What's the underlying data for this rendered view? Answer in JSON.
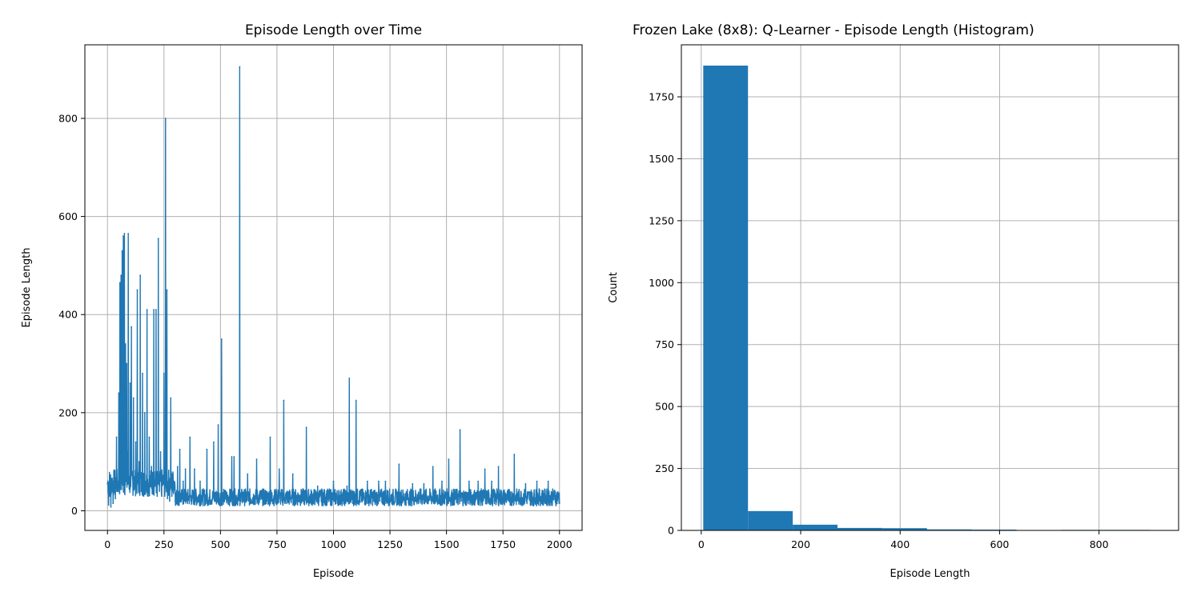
{
  "colors": {
    "series": "#1f77b4",
    "grid": "#b0b0b0",
    "axes": "#000000",
    "background": "#ffffff"
  },
  "chart_data": [
    {
      "type": "line",
      "title": "Episode Length over Time",
      "xlabel": "Episode",
      "ylabel": "Episode Length",
      "xlim": [
        -100,
        2100
      ],
      "ylim": [
        -40,
        950
      ],
      "xticks": [
        0,
        250,
        500,
        750,
        1000,
        1250,
        1500,
        1750,
        2000
      ],
      "yticks": [
        0,
        200,
        400,
        600,
        800
      ],
      "grid": true,
      "series": [
        {
          "points": [
            [
              0,
              55
            ],
            [
              5,
              12
            ],
            [
              10,
              30
            ],
            [
              15,
              8
            ],
            [
              20,
              40
            ],
            [
              25,
              15
            ],
            [
              30,
              80
            ],
            [
              35,
              25
            ],
            [
              40,
              150
            ],
            [
              45,
              40
            ],
            [
              50,
              240
            ],
            [
              52,
              60
            ],
            [
              55,
              465
            ],
            [
              58,
              90
            ],
            [
              60,
              480
            ],
            [
              62,
              120
            ],
            [
              65,
              530
            ],
            [
              67,
              80
            ],
            [
              70,
              560
            ],
            [
              73,
              150
            ],
            [
              75,
              565
            ],
            [
              78,
              100
            ],
            [
              80,
              340
            ],
            [
              83,
              60
            ],
            [
              85,
              300
            ],
            [
              88,
              120
            ],
            [
              92,
              565
            ],
            [
              95,
              60
            ],
            [
              100,
              260
            ],
            [
              103,
              50
            ],
            [
              106,
              375
            ],
            [
              110,
              80
            ],
            [
              115,
              230
            ],
            [
              120,
              60
            ],
            [
              125,
              140
            ],
            [
              128,
              40
            ],
            [
              132,
              450
            ],
            [
              136,
              70
            ],
            [
              140,
              100
            ],
            [
              145,
              480
            ],
            [
              150,
              40
            ],
            [
              155,
              280
            ],
            [
              160,
              30
            ],
            [
              165,
              200
            ],
            [
              170,
              60
            ],
            [
              175,
              410
            ],
            [
              180,
              30
            ],
            [
              185,
              150
            ],
            [
              190,
              60
            ],
            [
              195,
              90
            ],
            [
              200,
              40
            ],
            [
              205,
              410
            ],
            [
              210,
              50
            ],
            [
              215,
              410
            ],
            [
              220,
              30
            ],
            [
              225,
              555
            ],
            [
              230,
              40
            ],
            [
              235,
              120
            ],
            [
              240,
              30
            ],
            [
              245,
              60
            ],
            [
              250,
              280
            ],
            [
              253,
              30
            ],
            [
              257,
              800
            ],
            [
              260,
              50
            ],
            [
              263,
              450
            ],
            [
              266,
              25
            ],
            [
              270,
              60
            ],
            [
              275,
              20
            ],
            [
              280,
              230
            ],
            [
              285,
              30
            ],
            [
              295,
              60
            ],
            [
              300,
              20
            ],
            [
              310,
              90
            ],
            [
              315,
              20
            ],
            [
              320,
              125
            ],
            [
              325,
              25
            ],
            [
              335,
              60
            ],
            [
              340,
              20
            ],
            [
              345,
              85
            ],
            [
              350,
              20
            ],
            [
              365,
              150
            ],
            [
              370,
              20
            ],
            [
              385,
              85
            ],
            [
              390,
              20
            ],
            [
              410,
              60
            ],
            [
              420,
              20
            ],
            [
              440,
              125
            ],
            [
              445,
              20
            ],
            [
              470,
              140
            ],
            [
              475,
              20
            ],
            [
              490,
              175
            ],
            [
              495,
              20
            ],
            [
              505,
              350
            ],
            [
              510,
              20
            ],
            [
              520,
              40
            ],
            [
              530,
              20
            ],
            [
              550,
              110
            ],
            [
              555,
              20
            ],
            [
              560,
              110
            ],
            [
              565,
              20
            ],
            [
              585,
              905
            ],
            [
              590,
              20
            ],
            [
              620,
              75
            ],
            [
              625,
              20
            ],
            [
              660,
              105
            ],
            [
              665,
              20
            ],
            [
              700,
              40
            ],
            [
              705,
              20
            ],
            [
              720,
              150
            ],
            [
              725,
              20
            ],
            [
              760,
              85
            ],
            [
              765,
              20
            ],
            [
              780,
              225
            ],
            [
              785,
              20
            ],
            [
              820,
              75
            ],
            [
              825,
              20
            ],
            [
              860,
              40
            ],
            [
              865,
              20
            ],
            [
              880,
              170
            ],
            [
              885,
              20
            ],
            [
              930,
              50
            ],
            [
              935,
              20
            ],
            [
              1000,
              60
            ],
            [
              1005,
              20
            ],
            [
              1060,
              50
            ],
            [
              1065,
              20
            ],
            [
              1070,
              270
            ],
            [
              1075,
              20
            ],
            [
              1100,
              225
            ],
            [
              1105,
              20
            ],
            [
              1150,
              60
            ],
            [
              1155,
              20
            ],
            [
              1200,
              60
            ],
            [
              1205,
              20
            ],
            [
              1230,
              60
            ],
            [
              1235,
              20
            ],
            [
              1290,
              95
            ],
            [
              1295,
              20
            ],
            [
              1350,
              55
            ],
            [
              1355,
              20
            ],
            [
              1400,
              55
            ],
            [
              1405,
              20
            ],
            [
              1440,
              90
            ],
            [
              1445,
              20
            ],
            [
              1480,
              60
            ],
            [
              1485,
              20
            ],
            [
              1510,
              105
            ],
            [
              1515,
              20
            ],
            [
              1560,
              165
            ],
            [
              1565,
              20
            ],
            [
              1600,
              60
            ],
            [
              1605,
              20
            ],
            [
              1640,
              60
            ],
            [
              1645,
              20
            ],
            [
              1670,
              85
            ],
            [
              1675,
              20
            ],
            [
              1700,
              60
            ],
            [
              1705,
              20
            ],
            [
              1730,
              90
            ],
            [
              1735,
              20
            ],
            [
              1770,
              40
            ],
            [
              1775,
              20
            ],
            [
              1800,
              115
            ],
            [
              1805,
              20
            ],
            [
              1850,
              55
            ],
            [
              1855,
              20
            ],
            [
              1900,
              60
            ],
            [
              1905,
              20
            ],
            [
              1950,
              60
            ],
            [
              1955,
              20
            ],
            [
              1980,
              40
            ],
            [
              1985,
              15
            ],
            [
              1995,
              30
            ],
            [
              2000,
              15
            ]
          ],
          "noise_band": [
            10,
            45
          ]
        }
      ]
    },
    {
      "type": "histogram",
      "title": "Frozen Lake (8x8): Q-Learner - Episode Length (Histogram)",
      "xlabel": "Episode Length",
      "ylabel": "Count",
      "xlim": [
        -40,
        960
      ],
      "ylim": [
        0,
        1960
      ],
      "xticks": [
        0,
        200,
        400,
        600,
        800
      ],
      "yticks": [
        0,
        250,
        500,
        750,
        1000,
        1250,
        1500,
        1750
      ],
      "grid": true,
      "bins": [
        {
          "x0": 4,
          "x1": 94,
          "count": 1876
        },
        {
          "x0": 94,
          "x1": 184,
          "count": 78
        },
        {
          "x0": 184,
          "x1": 274,
          "count": 23
        },
        {
          "x0": 274,
          "x1": 364,
          "count": 10
        },
        {
          "x0": 364,
          "x1": 454,
          "count": 9
        },
        {
          "x0": 454,
          "x1": 544,
          "count": 4
        },
        {
          "x0": 544,
          "x1": 634,
          "count": 3
        },
        {
          "x0": 634,
          "x1": 724,
          "count": 1
        },
        {
          "x0": 724,
          "x1": 814,
          "count": 2
        },
        {
          "x0": 814,
          "x1": 904,
          "count": 2
        }
      ]
    }
  ]
}
